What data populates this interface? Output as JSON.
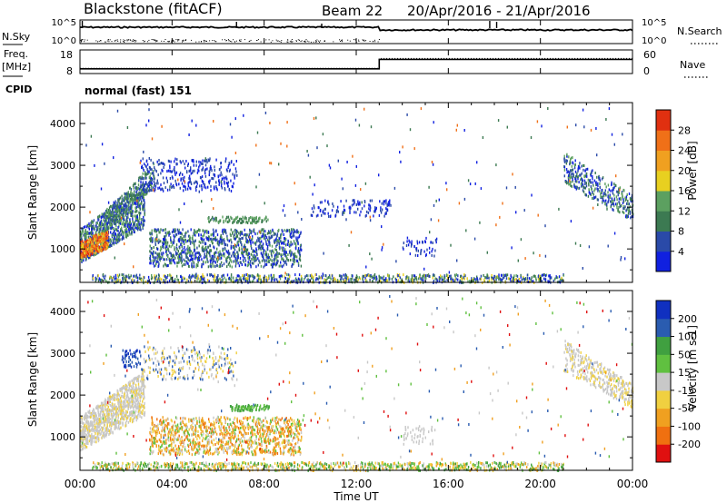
{
  "header": {
    "station": "Blackstone (fitACF)",
    "beam": "Beam 22",
    "date_range": "20/Apr/2016 - 21/Apr/2016"
  },
  "left_labels": {
    "nsky": "N.Sky",
    "freq": "Freq.",
    "freq_unit": "[MHz]",
    "cpid": "CPID"
  },
  "right_labels": {
    "nsearch": "N.Search",
    "nave": "Nave"
  },
  "cpid_text": "normal (fast) 151",
  "colors": {
    "power": [
      "#1020e0",
      "#2a4aa8",
      "#3c7a52",
      "#5ca060",
      "#e8d020",
      "#f0a020",
      "#f07018",
      "#e03010",
      "#d00000"
    ],
    "velocity": [
      "#e01010",
      "#f07010",
      "#f0a020",
      "#f0d040",
      "#c8c8c8",
      "#60c040",
      "#40a040",
      "#2a5cb0",
      "#1030c0"
    ]
  },
  "chart_data": [
    {
      "type": "line",
      "panel": "noise",
      "y_ticks": [
        "10^5",
        "10^0"
      ],
      "right_ticks": [
        "10^5",
        "10^0"
      ],
      "series": [
        {
          "name": "N.Sky",
          "style": "solid"
        },
        {
          "name": "N.Search",
          "style": "dotted"
        }
      ]
    },
    {
      "type": "line",
      "panel": "frequency",
      "left_ticks": [
        "18",
        "8"
      ],
      "right_ticks": [
        "60",
        "0"
      ],
      "x": [
        0,
        13,
        13,
        24
      ],
      "freq_mhz": [
        10,
        10,
        14,
        14
      ],
      "series": [
        {
          "name": "Freq.",
          "style": "solid"
        },
        {
          "name": "Nave",
          "style": "dotted"
        }
      ]
    },
    {
      "type": "heatmap",
      "panel": "power",
      "ylabel": "Slant Range [km]",
      "y_ticks": [
        "1000",
        "2000",
        "3000",
        "4000"
      ],
      "ylim": [
        200,
        4500
      ],
      "colorbar_label": "Power [dB]",
      "colorbar_ticks": [
        "4",
        "8",
        "12",
        "16",
        "20",
        "24",
        "28"
      ],
      "clim": [
        0,
        32
      ]
    },
    {
      "type": "heatmap",
      "panel": "velocity",
      "ylabel": "Slant Range [km]",
      "y_ticks": [
        "1000",
        "2000",
        "3000",
        "4000"
      ],
      "ylim": [
        200,
        4500
      ],
      "colorbar_label": "Velocity [m s-1]",
      "colorbar_ticks": [
        "-200",
        "-100",
        "-50",
        "-15",
        "15",
        "50",
        "100",
        "200"
      ]
    }
  ],
  "x_axis": {
    "label": "Time UT",
    "ticks": [
      "00:00",
      "04:00",
      "08:00",
      "12:00",
      "16:00",
      "20:00",
      "00:00"
    ],
    "xlim_hours": [
      0,
      24
    ]
  }
}
